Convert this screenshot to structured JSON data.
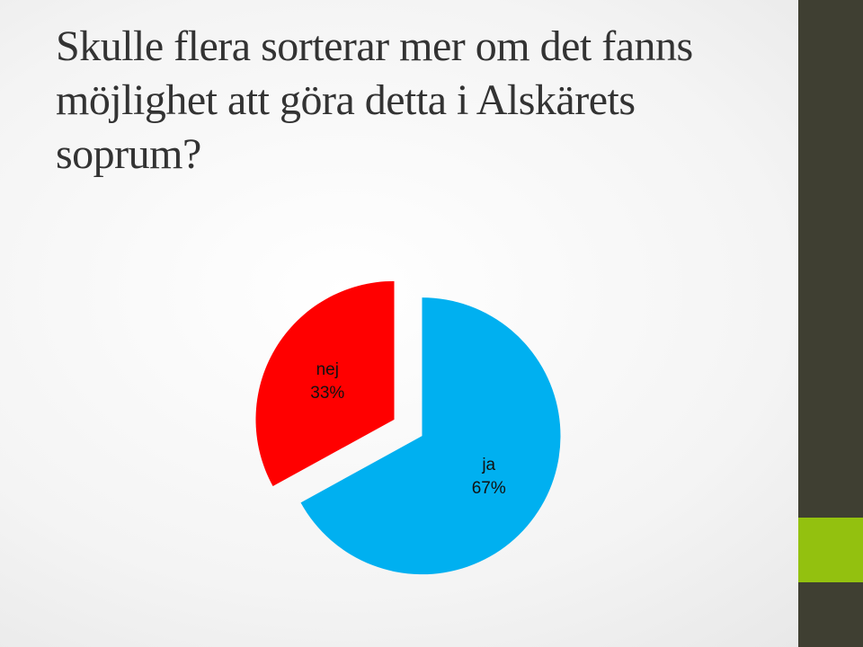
{
  "slide": {
    "title": "Skulle flera sorterar mer om det fanns möjlighet att göra detta i Alskärets soprum?"
  },
  "colors": {
    "right_bar": "#3f3f32",
    "right_bar_accent": "#93c10f",
    "title_text": "#333333"
  },
  "chart_data": {
    "type": "pie",
    "title": "",
    "start_angle_deg": 0,
    "exploded": true,
    "slices": [
      {
        "label": "ja",
        "value": 67,
        "percent_label": "67%",
        "color": "#00b0f0"
      },
      {
        "label": "nej",
        "value": 33,
        "percent_label": "33%",
        "color": "#ff0000"
      }
    ]
  }
}
